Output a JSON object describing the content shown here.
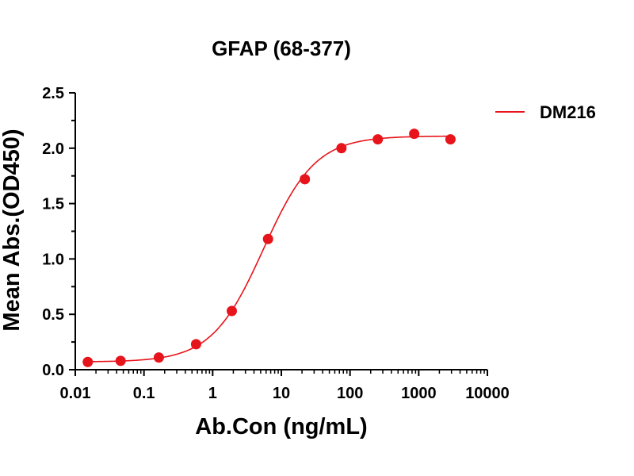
{
  "chart_data": {
    "type": "scatter",
    "title": "GFAP (68-377)",
    "xlabel": "Ab.Con (ng/mL)",
    "ylabel": "Mean Abs.(OD450)",
    "xscale": "log",
    "xlim": [
      0.01,
      10000
    ],
    "ylim": [
      0,
      2.5
    ],
    "x_ticks": [
      "0.01",
      "0.1",
      "1",
      "10",
      "100",
      "1000",
      "10000"
    ],
    "y_ticks": [
      "0.0",
      "0.5",
      "1.0",
      "1.5",
      "2.0",
      "2.5"
    ],
    "grid": false,
    "legend_position": "top-right",
    "series": [
      {
        "name": "DM216",
        "color": "#e8141b",
        "x": [
          0.0152,
          0.0457,
          0.1646,
          0.5736,
          1.9,
          6.4,
          22.0,
          75.0,
          254.0,
          860.0,
          2900.0
        ],
        "y": [
          0.07,
          0.08,
          0.11,
          0.23,
          0.53,
          1.18,
          1.72,
          2.0,
          2.08,
          2.13,
          2.08
        ]
      }
    ]
  }
}
